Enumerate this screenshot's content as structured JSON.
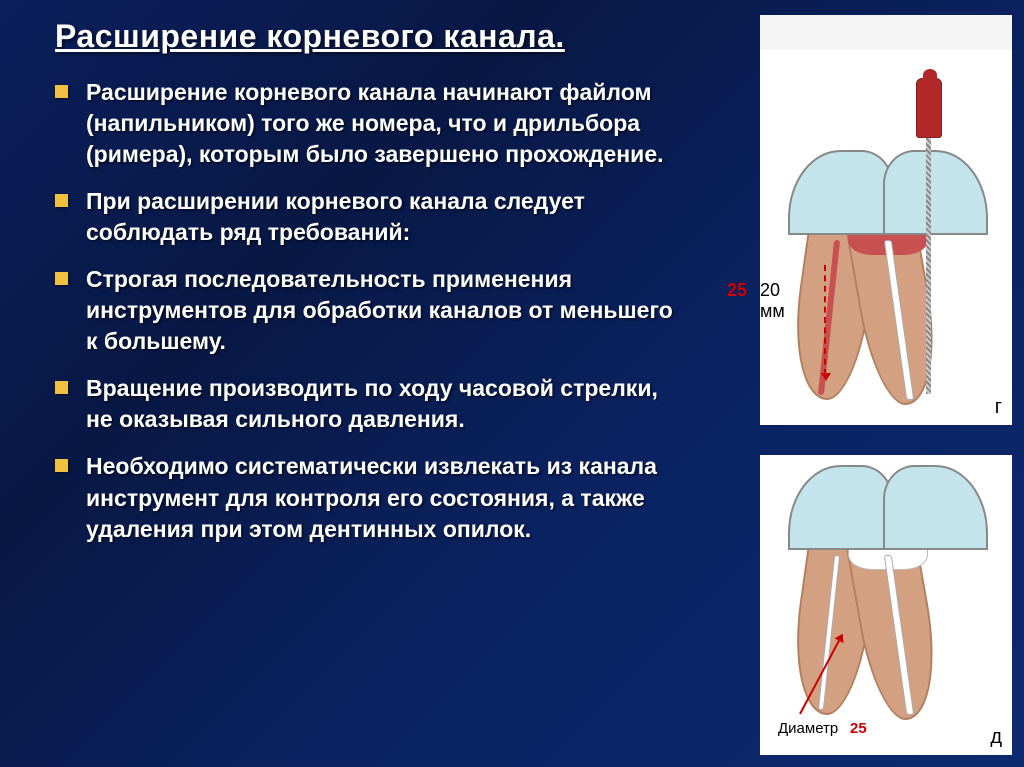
{
  "title": "Расширение корневого канала.",
  "bullets": [
    "Расширение корневого канала начинают файлом (напильником) того же номера, что и дрильбора (римера), которым было завершено прохождение.",
    "При расширении корневого канала следует соблюдать ряд требований:",
    "Строгая последовательность применения инструментов для обработки каналов от меньшего к большему.",
    "Вращение производить по ходу часовой стрелки, не оказывая сильного давления.",
    "Необходимо систематически извлекать из канала инструмент для контроля его состояния, а также удаления при этом дентинных опилок."
  ],
  "figure1": {
    "file_size_label": "25",
    "length_label": "20 мм",
    "panel_letter": "г",
    "colors": {
      "handle": "#b02828",
      "enamel": "#c4e4ec",
      "dentin": "#d4a082",
      "pulp": "#c85050"
    }
  },
  "figure2": {
    "diameter_word": "Диаметр",
    "diameter_value": "25",
    "panel_letter": "д"
  },
  "style": {
    "bullet_color": "#f0c040",
    "title_fontsize": 32,
    "body_fontsize": 23
  }
}
